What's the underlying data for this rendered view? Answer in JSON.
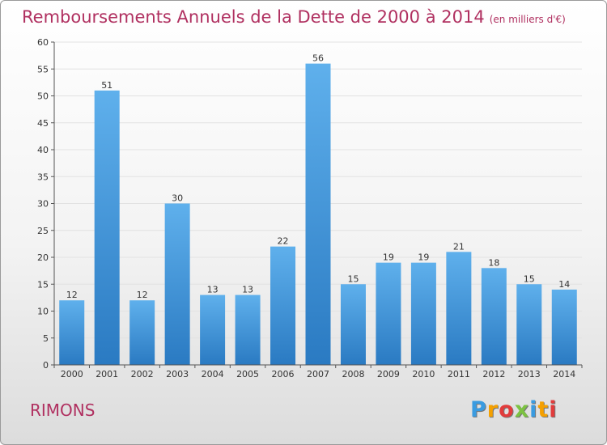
{
  "chart_data": {
    "type": "bar",
    "title": "Remboursements Annuels de la Dette de 2000 à 2014",
    "unit": "(en milliers d'€)",
    "categories": [
      "2000",
      "2001",
      "2002",
      "2003",
      "2004",
      "2005",
      "2006",
      "2007",
      "2008",
      "2009",
      "2010",
      "2011",
      "2012",
      "2013",
      "2014"
    ],
    "values": [
      12,
      51,
      12,
      30,
      13,
      13,
      22,
      56,
      15,
      19,
      19,
      21,
      18,
      15,
      14
    ],
    "ylim": [
      0,
      60
    ],
    "yticks": [
      0,
      5,
      10,
      15,
      20,
      25,
      30,
      35,
      40,
      45,
      50,
      55,
      60
    ],
    "grid": true,
    "bar_color": "#3a8fd6"
  },
  "location": "RIMONS",
  "logo": {
    "letters": [
      "P",
      "r",
      "o",
      "x",
      "i",
      "t",
      "i"
    ],
    "colors": [
      "#3a9be0",
      "#f5a000",
      "#e23c3c",
      "#7cc242",
      "#3a9be0",
      "#f5a000",
      "#e23c3c"
    ]
  },
  "colors": {
    "title": "#b03060",
    "grid": "#e2e2e2"
  }
}
